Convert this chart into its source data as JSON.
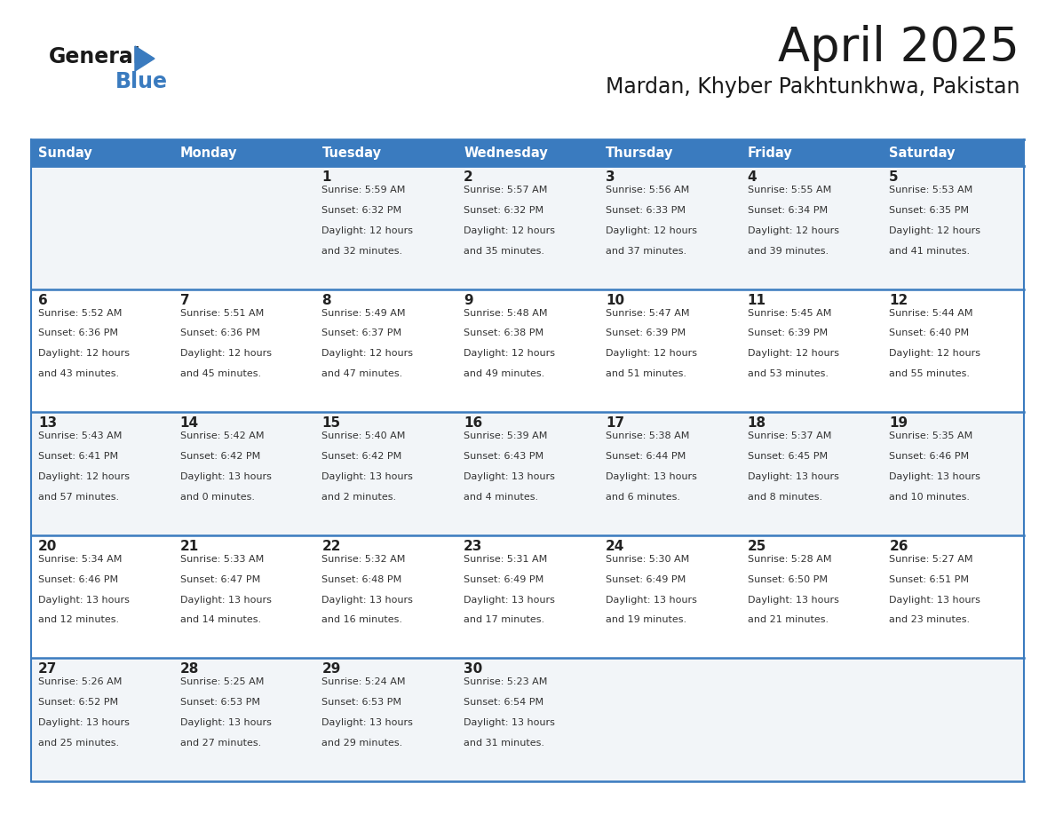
{
  "title": "April 2025",
  "subtitle": "Mardan, Khyber Pakhtunkhwa, Pakistan",
  "header_color": "#3a7bbf",
  "header_text_color": "#ffffff",
  "row_bg_odd": "#f2f5f8",
  "row_bg_even": "#ffffff",
  "divider_color": "#3a7bbf",
  "text_color": "#333333",
  "day_number_color": "#222222",
  "days": [
    "Sunday",
    "Monday",
    "Tuesday",
    "Wednesday",
    "Thursday",
    "Friday",
    "Saturday"
  ],
  "weeks": [
    [
      {
        "day": "",
        "sunrise": "",
        "sunset": "",
        "daylight": ""
      },
      {
        "day": "",
        "sunrise": "",
        "sunset": "",
        "daylight": ""
      },
      {
        "day": "1",
        "sunrise": "5:59 AM",
        "sunset": "6:32 PM",
        "daylight": "12 hours and 32 minutes."
      },
      {
        "day": "2",
        "sunrise": "5:57 AM",
        "sunset": "6:32 PM",
        "daylight": "12 hours and 35 minutes."
      },
      {
        "day": "3",
        "sunrise": "5:56 AM",
        "sunset": "6:33 PM",
        "daylight": "12 hours and 37 minutes."
      },
      {
        "day": "4",
        "sunrise": "5:55 AM",
        "sunset": "6:34 PM",
        "daylight": "12 hours and 39 minutes."
      },
      {
        "day": "5",
        "sunrise": "5:53 AM",
        "sunset": "6:35 PM",
        "daylight": "12 hours and 41 minutes."
      }
    ],
    [
      {
        "day": "6",
        "sunrise": "5:52 AM",
        "sunset": "6:36 PM",
        "daylight": "12 hours and 43 minutes."
      },
      {
        "day": "7",
        "sunrise": "5:51 AM",
        "sunset": "6:36 PM",
        "daylight": "12 hours and 45 minutes."
      },
      {
        "day": "8",
        "sunrise": "5:49 AM",
        "sunset": "6:37 PM",
        "daylight": "12 hours and 47 minutes."
      },
      {
        "day": "9",
        "sunrise": "5:48 AM",
        "sunset": "6:38 PM",
        "daylight": "12 hours and 49 minutes."
      },
      {
        "day": "10",
        "sunrise": "5:47 AM",
        "sunset": "6:39 PM",
        "daylight": "12 hours and 51 minutes."
      },
      {
        "day": "11",
        "sunrise": "5:45 AM",
        "sunset": "6:39 PM",
        "daylight": "12 hours and 53 minutes."
      },
      {
        "day": "12",
        "sunrise": "5:44 AM",
        "sunset": "6:40 PM",
        "daylight": "12 hours and 55 minutes."
      }
    ],
    [
      {
        "day": "13",
        "sunrise": "5:43 AM",
        "sunset": "6:41 PM",
        "daylight": "12 hours and 57 minutes."
      },
      {
        "day": "14",
        "sunrise": "5:42 AM",
        "sunset": "6:42 PM",
        "daylight": "13 hours and 0 minutes."
      },
      {
        "day": "15",
        "sunrise": "5:40 AM",
        "sunset": "6:42 PM",
        "daylight": "13 hours and 2 minutes."
      },
      {
        "day": "16",
        "sunrise": "5:39 AM",
        "sunset": "6:43 PM",
        "daylight": "13 hours and 4 minutes."
      },
      {
        "day": "17",
        "sunrise": "5:38 AM",
        "sunset": "6:44 PM",
        "daylight": "13 hours and 6 minutes."
      },
      {
        "day": "18",
        "sunrise": "5:37 AM",
        "sunset": "6:45 PM",
        "daylight": "13 hours and 8 minutes."
      },
      {
        "day": "19",
        "sunrise": "5:35 AM",
        "sunset": "6:46 PM",
        "daylight": "13 hours and 10 minutes."
      }
    ],
    [
      {
        "day": "20",
        "sunrise": "5:34 AM",
        "sunset": "6:46 PM",
        "daylight": "13 hours and 12 minutes."
      },
      {
        "day": "21",
        "sunrise": "5:33 AM",
        "sunset": "6:47 PM",
        "daylight": "13 hours and 14 minutes."
      },
      {
        "day": "22",
        "sunrise": "5:32 AM",
        "sunset": "6:48 PM",
        "daylight": "13 hours and 16 minutes."
      },
      {
        "day": "23",
        "sunrise": "5:31 AM",
        "sunset": "6:49 PM",
        "daylight": "13 hours and 17 minutes."
      },
      {
        "day": "24",
        "sunrise": "5:30 AM",
        "sunset": "6:49 PM",
        "daylight": "13 hours and 19 minutes."
      },
      {
        "day": "25",
        "sunrise": "5:28 AM",
        "sunset": "6:50 PM",
        "daylight": "13 hours and 21 minutes."
      },
      {
        "day": "26",
        "sunrise": "5:27 AM",
        "sunset": "6:51 PM",
        "daylight": "13 hours and 23 minutes."
      }
    ],
    [
      {
        "day": "27",
        "sunrise": "5:26 AM",
        "sunset": "6:52 PM",
        "daylight": "13 hours and 25 minutes."
      },
      {
        "day": "28",
        "sunrise": "5:25 AM",
        "sunset": "6:53 PM",
        "daylight": "13 hours and 27 minutes."
      },
      {
        "day": "29",
        "sunrise": "5:24 AM",
        "sunset": "6:53 PM",
        "daylight": "13 hours and 29 minutes."
      },
      {
        "day": "30",
        "sunrise": "5:23 AM",
        "sunset": "6:54 PM",
        "daylight": "13 hours and 31 minutes."
      },
      {
        "day": "",
        "sunrise": "",
        "sunset": "",
        "daylight": ""
      },
      {
        "day": "",
        "sunrise": "",
        "sunset": "",
        "daylight": ""
      },
      {
        "day": "",
        "sunrise": "",
        "sunset": "",
        "daylight": ""
      }
    ]
  ],
  "fig_width": 11.88,
  "fig_height": 9.18,
  "dpi": 100
}
